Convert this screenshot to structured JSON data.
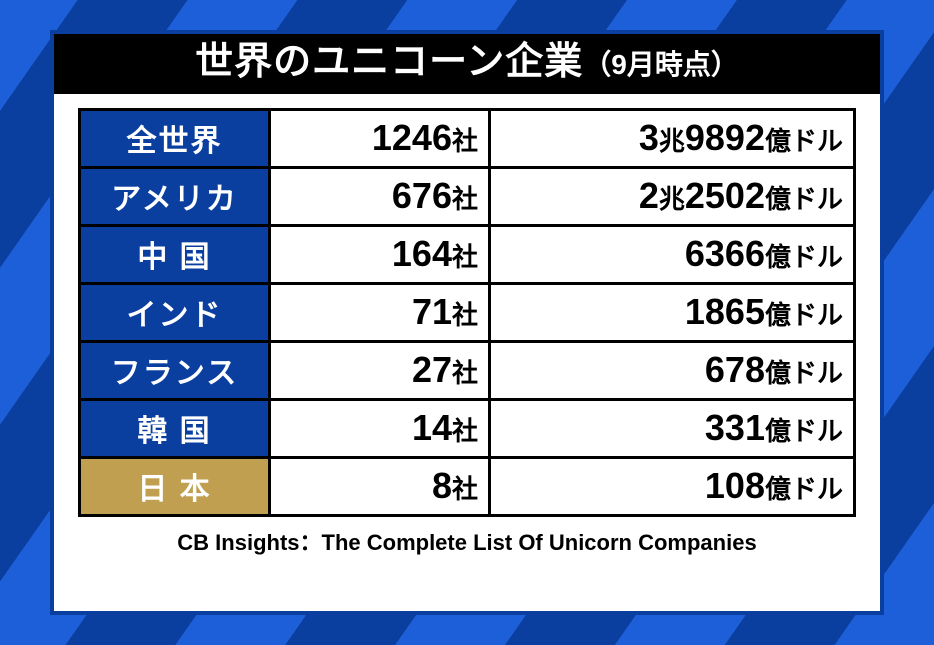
{
  "background": {
    "stripe_a": "#0a3fa0",
    "stripe_b": "#1d5fd8"
  },
  "panel": {
    "bg": "#ffffff",
    "border": "#0a3fa0"
  },
  "title": {
    "bg": "#000000",
    "fg": "#ffffff",
    "main": "世界のユニコーン企業",
    "main_fontsize": 38,
    "sub": "（9月時点）",
    "sub_fontsize": 28
  },
  "table": {
    "type": "table",
    "cell_border": "#000000",
    "cell_bg": "#ffffff",
    "label_bg": "#0a3fa0",
    "label_fg": "#ffffff",
    "label_fontsize": 30,
    "label_highlight_bg": "#c0a050",
    "label_highlight_fg": "#ffffff",
    "num_fg": "#000000",
    "num_fontsize": 28,
    "num_big_fontsize": 36,
    "unit_fontsize": 26,
    "count_suffix": "社",
    "value_small_unit": "億ドル",
    "value_big_unit": "兆",
    "rows": [
      {
        "label": "全世界",
        "count": "1246",
        "big": "3",
        "small": "9892",
        "highlight": false
      },
      {
        "label": "アメリカ",
        "count": "676",
        "big": "2",
        "small": "2502",
        "highlight": false
      },
      {
        "label": "中 国",
        "count": "164",
        "big": "",
        "small": "6366",
        "highlight": false
      },
      {
        "label": "インド",
        "count": "71",
        "big": "",
        "small": "1865",
        "highlight": false
      },
      {
        "label": "フランス",
        "count": "27",
        "big": "",
        "small": "678",
        "highlight": false
      },
      {
        "label": "韓 国",
        "count": "14",
        "big": "",
        "small": "331",
        "highlight": false
      },
      {
        "label": "日 本",
        "count": "8",
        "big": "",
        "small": "108",
        "highlight": true
      }
    ]
  },
  "source": {
    "text": "CB Insights：The Complete List Of Unicorn Companies",
    "fg": "#000000",
    "fontsize": 22
  }
}
